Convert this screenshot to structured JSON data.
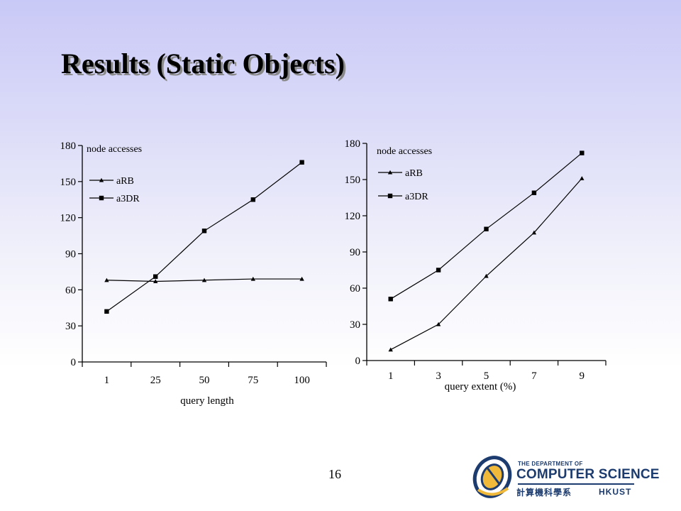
{
  "slide": {
    "title": "Results (Static Objects)",
    "page_number": "16"
  },
  "logo": {
    "small_text": "THE DEPARTMENT OF",
    "big_text": "COMPUTER SCIENCE",
    "cjk_text": "計算機科學系",
    "hkust_text": "HKUST"
  },
  "chart_data": [
    {
      "type": "line",
      "categories": [
        "1",
        "25",
        "50",
        "75",
        "100"
      ],
      "xlabel": "query length",
      "ylabel": "node accesses",
      "ylim": [
        0,
        180
      ],
      "yticks": [
        0,
        30,
        60,
        90,
        120,
        150,
        180
      ],
      "legend": "top-left",
      "grid": false,
      "series": [
        {
          "name": "aRB",
          "marker": "triangle",
          "values": [
            68,
            67,
            68,
            69,
            69
          ]
        },
        {
          "name": "a3DR",
          "marker": "square",
          "values": [
            42,
            71,
            109,
            135,
            166
          ]
        }
      ]
    },
    {
      "type": "line",
      "categories": [
        "1",
        "3",
        "5",
        "7",
        "9"
      ],
      "xlabel": "query extent (%)",
      "ylabel": "node accesses",
      "ylim": [
        0,
        180
      ],
      "yticks": [
        0,
        30,
        60,
        90,
        120,
        150,
        180
      ],
      "legend": "top-left",
      "grid": false,
      "series": [
        {
          "name": "aRB",
          "marker": "triangle",
          "values": [
            9,
            30,
            70,
            106,
            151
          ]
        },
        {
          "name": "a3DR",
          "marker": "square",
          "values": [
            51,
            75,
            109,
            139,
            172
          ]
        }
      ]
    }
  ]
}
